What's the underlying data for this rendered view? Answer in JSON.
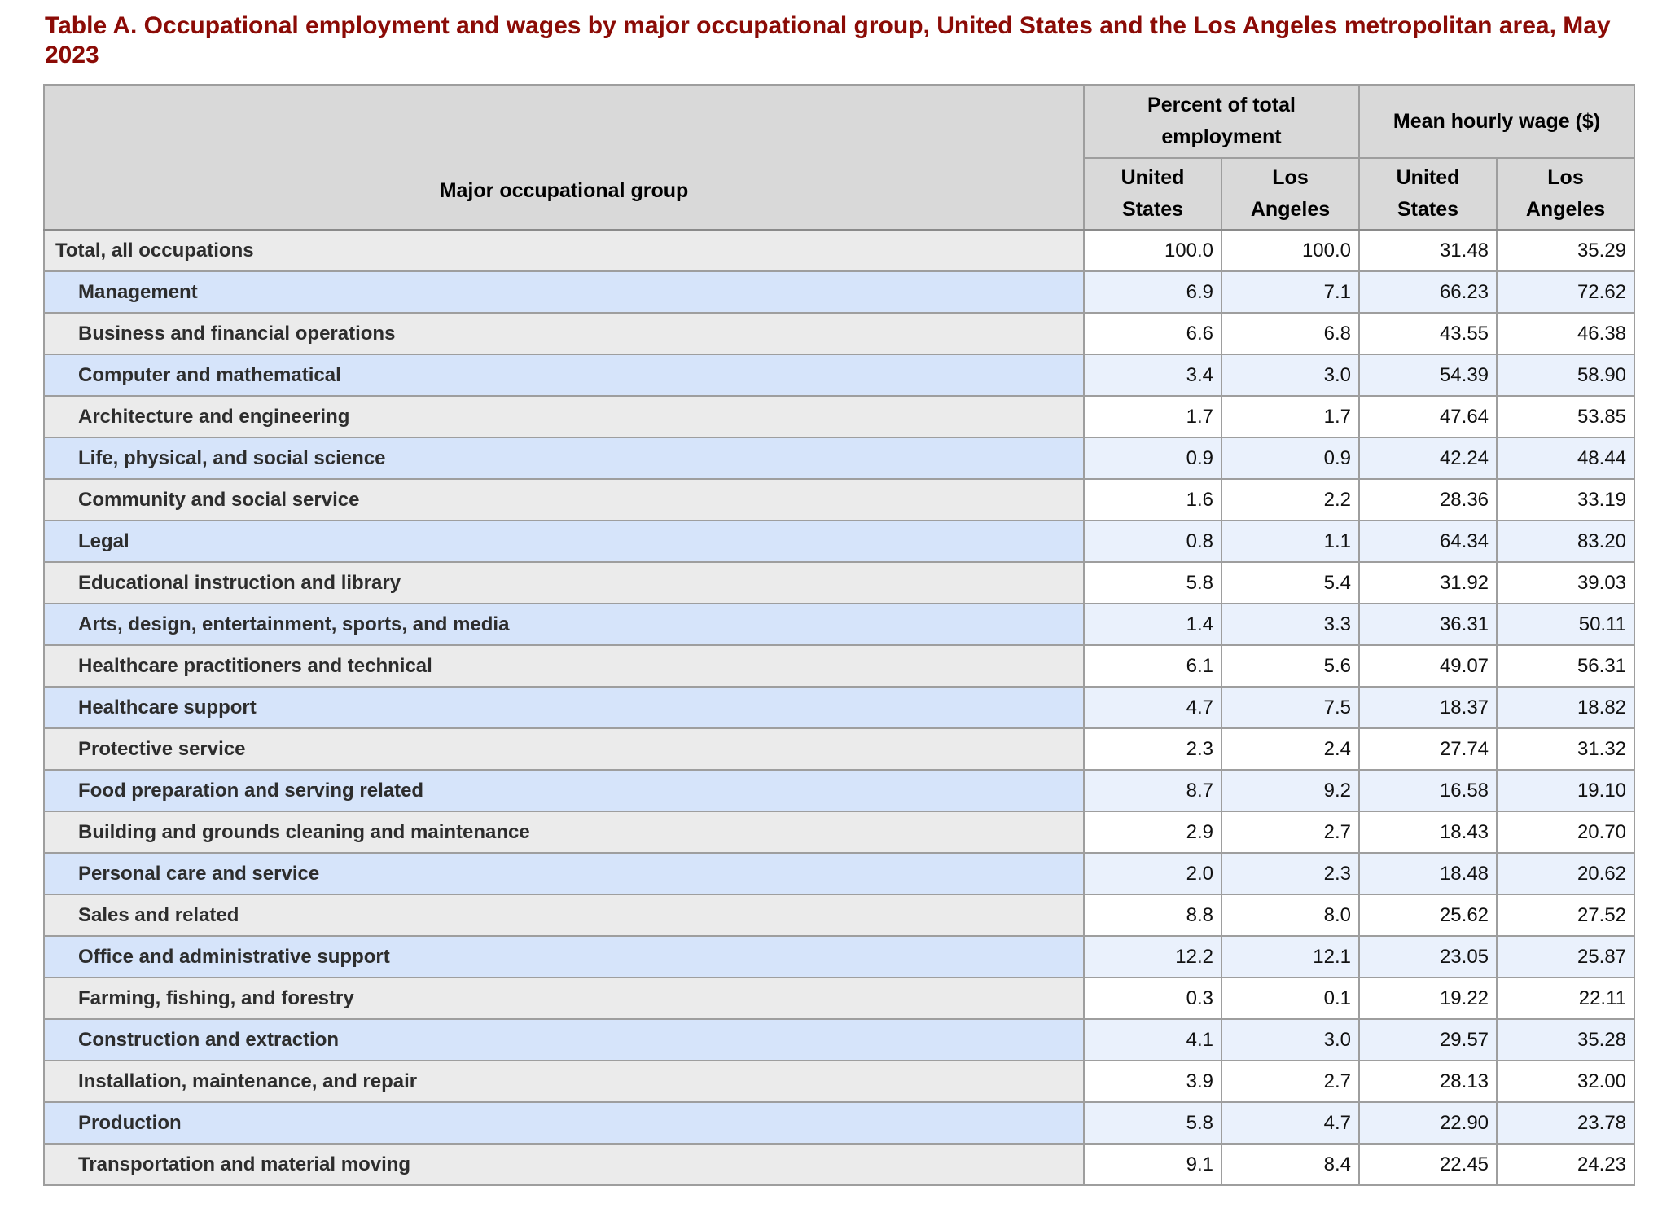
{
  "page": {
    "title": "Table A. Occupational employment and wages by major occupational group, United States and the Los Angeles metropolitan area, May 2023"
  },
  "table": {
    "header": {
      "major_group_label": "Major occupational group",
      "group_percent": "Percent of total\nemployment",
      "group_wage": "Mean hourly wage ($)",
      "sub_labels": [
        "United\nStates",
        "Los\nAngeles",
        "United\nStates",
        "Los\nAngeles"
      ]
    },
    "rows": [
      {
        "label": "Total, all occupations",
        "indent": false,
        "values": [
          "100.0",
          "100.0",
          "31.48",
          "35.29"
        ]
      },
      {
        "label": "Management",
        "indent": true,
        "values": [
          "6.9",
          "7.1",
          "66.23",
          "72.62"
        ]
      },
      {
        "label": "Business and financial operations",
        "indent": true,
        "values": [
          "6.6",
          "6.8",
          "43.55",
          "46.38"
        ]
      },
      {
        "label": "Computer and mathematical",
        "indent": true,
        "values": [
          "3.4",
          "3.0",
          "54.39",
          "58.90"
        ]
      },
      {
        "label": "Architecture and engineering",
        "indent": true,
        "values": [
          "1.7",
          "1.7",
          "47.64",
          "53.85"
        ]
      },
      {
        "label": "Life, physical, and social science",
        "indent": true,
        "values": [
          "0.9",
          "0.9",
          "42.24",
          "48.44"
        ]
      },
      {
        "label": "Community and social service",
        "indent": true,
        "values": [
          "1.6",
          "2.2",
          "28.36",
          "33.19"
        ]
      },
      {
        "label": "Legal",
        "indent": true,
        "values": [
          "0.8",
          "1.1",
          "64.34",
          "83.20"
        ]
      },
      {
        "label": "Educational instruction and library",
        "indent": true,
        "values": [
          "5.8",
          "5.4",
          "31.92",
          "39.03"
        ]
      },
      {
        "label": "Arts, design, entertainment, sports, and media",
        "indent": true,
        "values": [
          "1.4",
          "3.3",
          "36.31",
          "50.11"
        ]
      },
      {
        "label": "Healthcare practitioners and technical",
        "indent": true,
        "values": [
          "6.1",
          "5.6",
          "49.07",
          "56.31"
        ]
      },
      {
        "label": "Healthcare support",
        "indent": true,
        "values": [
          "4.7",
          "7.5",
          "18.37",
          "18.82"
        ]
      },
      {
        "label": "Protective service",
        "indent": true,
        "values": [
          "2.3",
          "2.4",
          "27.74",
          "31.32"
        ]
      },
      {
        "label": "Food preparation and serving related",
        "indent": true,
        "values": [
          "8.7",
          "9.2",
          "16.58",
          "19.10"
        ]
      },
      {
        "label": "Building and grounds cleaning and maintenance",
        "indent": true,
        "values": [
          "2.9",
          "2.7",
          "18.43",
          "20.70"
        ]
      },
      {
        "label": "Personal care and service",
        "indent": true,
        "values": [
          "2.0",
          "2.3",
          "18.48",
          "20.62"
        ]
      },
      {
        "label": "Sales and related",
        "indent": true,
        "values": [
          "8.8",
          "8.0",
          "25.62",
          "27.52"
        ]
      },
      {
        "label": "Office and administrative support",
        "indent": true,
        "values": [
          "12.2",
          "12.1",
          "23.05",
          "25.87"
        ]
      },
      {
        "label": "Farming, fishing, and forestry",
        "indent": true,
        "values": [
          "0.3",
          "0.1",
          "19.22",
          "22.11"
        ]
      },
      {
        "label": "Construction and extraction",
        "indent": true,
        "values": [
          "4.1",
          "3.0",
          "29.57",
          "35.28"
        ]
      },
      {
        "label": "Installation, maintenance, and repair",
        "indent": true,
        "values": [
          "3.9",
          "2.7",
          "28.13",
          "32.00"
        ]
      },
      {
        "label": "Production",
        "indent": true,
        "values": [
          "5.8",
          "4.7",
          "22.90",
          "23.78"
        ]
      },
      {
        "label": "Transportation and material moving",
        "indent": true,
        "values": [
          "9.1",
          "8.4",
          "22.45",
          "24.23"
        ]
      }
    ]
  },
  "colors": {
    "title-color": "#8b0b06",
    "header-bg": "#d9d9d9",
    "row-gray-label": "#ebebeb",
    "row-gray-data": "#ffffff",
    "row-blue-label": "#d6e4fa",
    "row-blue-data": "#eaf1fc",
    "border-color": "#9e9e9e"
  }
}
